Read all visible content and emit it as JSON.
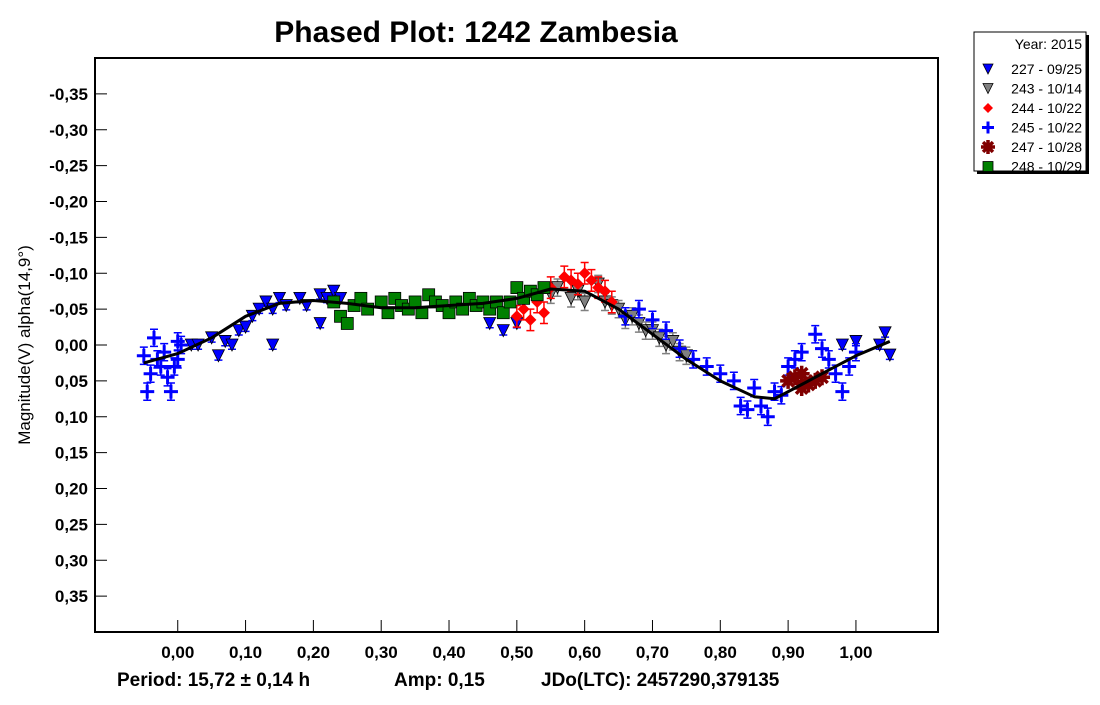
{
  "chart_data": {
    "type": "scatter",
    "title": "Phased Plot: 1242 Zambesia",
    "xlabel": "",
    "ylabel": "Magnitude(V) alpha(14,9°)",
    "xlim": [
      -0.122,
      1.121
    ],
    "ylim": [
      -0.4,
      0.4
    ],
    "y_inverted": true,
    "grid": false,
    "x_ticks": [
      0.0,
      0.1,
      0.2,
      0.3,
      0.4,
      0.5,
      0.6,
      0.7,
      0.8,
      0.9,
      1.0
    ],
    "x_tick_labels": [
      "0,00",
      "0,10",
      "0,20",
      "0,30",
      "0,40",
      "0,50",
      "0,60",
      "0,70",
      "0,80",
      "0,90",
      "1,00"
    ],
    "y_ticks": [
      -0.35,
      -0.3,
      -0.25,
      -0.2,
      -0.15,
      -0.1,
      -0.05,
      0.0,
      0.05,
      0.1,
      0.15,
      0.2,
      0.25,
      0.3,
      0.35
    ],
    "y_tick_labels": [
      "-0,35",
      "-0,30",
      "-0,25",
      "-0,20",
      "-0,15",
      "-0,10",
      "-0,05",
      "0,00",
      "0,05",
      "0,10",
      "0,15",
      "0,20",
      "0,25",
      "0,30",
      "0,35"
    ],
    "footer": {
      "period": "Period: 15,72 ± 0,14 h",
      "amp": "Amp: 0,15",
      "jdo": "JDo(LTC): 2457290,379135"
    },
    "legend": {
      "position": "top-right-outside",
      "title": "Year: 2015"
    },
    "fit_curve": [
      [
        -0.05,
        0.025
      ],
      [
        0,
        0.012
      ],
      [
        0.05,
        -0.01
      ],
      [
        0.1,
        -0.04
      ],
      [
        0.15,
        -0.058
      ],
      [
        0.2,
        -0.062
      ],
      [
        0.25,
        -0.058
      ],
      [
        0.3,
        -0.052
      ],
      [
        0.35,
        -0.052
      ],
      [
        0.4,
        -0.055
      ],
      [
        0.45,
        -0.058
      ],
      [
        0.5,
        -0.065
      ],
      [
        0.55,
        -0.078
      ],
      [
        0.6,
        -0.075
      ],
      [
        0.65,
        -0.05
      ],
      [
        0.7,
        -0.015
      ],
      [
        0.75,
        0.02
      ],
      [
        0.8,
        0.05
      ],
      [
        0.85,
        0.072
      ],
      [
        0.88,
        0.075
      ],
      [
        0.92,
        0.055
      ],
      [
        0.96,
        0.035
      ],
      [
        1.0,
        0.015
      ],
      [
        1.05,
        -0.005
      ]
    ],
    "series": [
      {
        "name": "227 - 09/25",
        "marker": "triangle-down",
        "color": "#0000ff",
        "err": 0.006,
        "points": [
          [
            0.02,
            0.0
          ],
          [
            0.03,
            0.0
          ],
          [
            0.05,
            -0.01
          ],
          [
            0.06,
            0.015
          ],
          [
            0.07,
            -0.005
          ],
          [
            0.08,
            0.0
          ],
          [
            0.09,
            -0.02
          ],
          [
            0.1,
            -0.025
          ],
          [
            0.11,
            -0.04
          ],
          [
            0.12,
            -0.05
          ],
          [
            0.13,
            -0.06
          ],
          [
            0.14,
            -0.05
          ],
          [
            0.14,
            0.0
          ],
          [
            0.15,
            -0.065
          ],
          [
            0.16,
            -0.055
          ],
          [
            0.18,
            -0.065
          ],
          [
            0.19,
            -0.055
          ],
          [
            0.21,
            -0.07
          ],
          [
            0.21,
            -0.03
          ],
          [
            0.22,
            -0.065
          ],
          [
            0.23,
            -0.075
          ],
          [
            0.24,
            -0.065
          ],
          [
            0.46,
            -0.03
          ],
          [
            0.48,
            -0.02
          ],
          [
            0.5,
            -0.03
          ],
          [
            0.98,
            0.0
          ],
          [
            1.0,
            -0.005
          ],
          [
            1.035,
            0.0
          ],
          [
            1.043,
            -0.017
          ],
          [
            1.05,
            0.014
          ]
        ]
      },
      {
        "name": "243 - 10/14",
        "marker": "triangle-down",
        "color": "#808080",
        "err": 0.012,
        "points": [
          [
            0.55,
            -0.07
          ],
          [
            0.56,
            -0.08
          ],
          [
            0.58,
            -0.065
          ],
          [
            0.59,
            -0.075
          ],
          [
            0.6,
            -0.06
          ],
          [
            0.62,
            -0.085
          ],
          [
            0.63,
            -0.06
          ],
          [
            0.64,
            -0.055
          ],
          [
            0.65,
            -0.05
          ],
          [
            0.66,
            -0.035
          ],
          [
            0.67,
            -0.04
          ],
          [
            0.68,
            -0.03
          ],
          [
            0.69,
            -0.02
          ],
          [
            0.7,
            -0.02
          ],
          [
            0.71,
            -0.01
          ],
          [
            0.72,
            0.0
          ],
          [
            0.73,
            -0.005
          ],
          [
            0.74,
            0.01
          ],
          [
            0.75,
            0.015
          ]
        ]
      },
      {
        "name": "244 - 10/22",
        "marker": "diamond",
        "color": "#ff0000",
        "err": 0.015,
        "points": [
          [
            0.5,
            -0.04
          ],
          [
            0.51,
            -0.05
          ],
          [
            0.52,
            -0.035
          ],
          [
            0.53,
            -0.06
          ],
          [
            0.54,
            -0.045
          ],
          [
            0.55,
            -0.08
          ],
          [
            0.57,
            -0.095
          ],
          [
            0.58,
            -0.09
          ],
          [
            0.59,
            -0.085
          ],
          [
            0.6,
            -0.1
          ],
          [
            0.61,
            -0.09
          ],
          [
            0.62,
            -0.08
          ],
          [
            0.63,
            -0.075
          ],
          [
            0.64,
            -0.06
          ]
        ]
      },
      {
        "name": "245 - 10/22",
        "marker": "plus",
        "color": "#0000ff",
        "err": 0.012,
        "points": [
          [
            -0.05,
            0.015
          ],
          [
            -0.045,
            0.065
          ],
          [
            -0.04,
            0.04
          ],
          [
            -0.035,
            -0.01
          ],
          [
            -0.03,
            0.02
          ],
          [
            -0.025,
            0.03
          ],
          [
            -0.02,
            0.01
          ],
          [
            -0.015,
            0.045
          ],
          [
            -0.01,
            0.065
          ],
          [
            -0.005,
            0.03
          ],
          [
            0.0,
            -0.005
          ],
          [
            0.005,
            0.0
          ],
          [
            0.0,
            0.02
          ],
          [
            0.66,
            -0.04
          ],
          [
            0.68,
            -0.05
          ],
          [
            0.7,
            -0.035
          ],
          [
            0.72,
            -0.02
          ],
          [
            0.74,
            0.005
          ],
          [
            0.76,
            0.02
          ],
          [
            0.78,
            0.03
          ],
          [
            0.8,
            0.04
          ],
          [
            0.82,
            0.05
          ],
          [
            0.83,
            0.085
          ],
          [
            0.84,
            0.09
          ],
          [
            0.85,
            0.06
          ],
          [
            0.86,
            0.085
          ],
          [
            0.87,
            0.1
          ],
          [
            0.88,
            0.065
          ],
          [
            0.89,
            0.07
          ],
          [
            0.9,
            0.03
          ],
          [
            0.91,
            0.02
          ],
          [
            0.92,
            0.01
          ],
          [
            0.94,
            -0.015
          ],
          [
            0.95,
            0.005
          ],
          [
            0.96,
            0.02
          ],
          [
            0.97,
            0.04
          ],
          [
            0.98,
            0.065
          ],
          [
            0.99,
            0.03
          ],
          [
            1.0,
            0.01
          ]
        ]
      },
      {
        "name": "247 - 10/28",
        "marker": "star",
        "color": "#800000",
        "err": 0.005,
        "points": [
          [
            0.9,
            0.05
          ],
          [
            0.91,
            0.045
          ],
          [
            0.92,
            0.04
          ],
          [
            0.92,
            0.06
          ],
          [
            0.93,
            0.055
          ],
          [
            0.94,
            0.05
          ],
          [
            0.95,
            0.045
          ]
        ]
      },
      {
        "name": "248 - 10/29",
        "marker": "square",
        "color": "#008000",
        "err": 0.004,
        "points": [
          [
            0.23,
            -0.06
          ],
          [
            0.24,
            -0.04
          ],
          [
            0.25,
            -0.03
          ],
          [
            0.26,
            -0.055
          ],
          [
            0.27,
            -0.065
          ],
          [
            0.28,
            -0.05
          ],
          [
            0.3,
            -0.06
          ],
          [
            0.31,
            -0.045
          ],
          [
            0.32,
            -0.065
          ],
          [
            0.33,
            -0.055
          ],
          [
            0.34,
            -0.05
          ],
          [
            0.35,
            -0.06
          ],
          [
            0.36,
            -0.045
          ],
          [
            0.37,
            -0.07
          ],
          [
            0.38,
            -0.06
          ],
          [
            0.39,
            -0.055
          ],
          [
            0.4,
            -0.045
          ],
          [
            0.41,
            -0.06
          ],
          [
            0.42,
            -0.05
          ],
          [
            0.43,
            -0.065
          ],
          [
            0.44,
            -0.055
          ],
          [
            0.45,
            -0.06
          ],
          [
            0.46,
            -0.05
          ],
          [
            0.47,
            -0.06
          ],
          [
            0.48,
            -0.045
          ],
          [
            0.49,
            -0.06
          ],
          [
            0.5,
            -0.08
          ],
          [
            0.51,
            -0.065
          ],
          [
            0.52,
            -0.075
          ],
          [
            0.53,
            -0.07
          ],
          [
            0.54,
            -0.08
          ]
        ]
      }
    ]
  }
}
